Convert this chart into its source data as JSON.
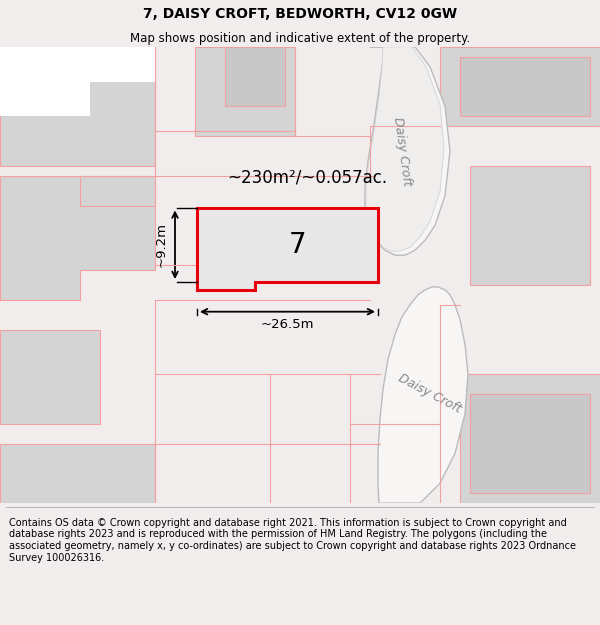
{
  "title": "7, DAISY CROFT, BEDWORTH, CV12 0GW",
  "subtitle": "Map shows position and indicative extent of the property.",
  "footer": "Contains OS data © Crown copyright and database right 2021. This information is subject to Crown copyright and database rights 2023 and is reproduced with the permission of HM Land Registry. The polygons (including the associated geometry, namely x, y co-ordinates) are subject to Crown copyright and database rights 2023 Ordnance Survey 100026316.",
  "area_text": "~230m²/~0.057ac.",
  "width_text": "~26.5m",
  "height_text": "~9.2m",
  "plot_number": "7",
  "street_name_1": "Daisy Croft",
  "street_name_2": "Daisy Croft",
  "bg_color": "#f2eded",
  "map_bg": "#ffffff",
  "plot_red": "#e8000a",
  "plot_fill": "#e0e0e0",
  "bld_fill": "#d4d4d4",
  "bld_fill2": "#c8c8c8",
  "pink": "#f5a0a0",
  "road_fill": "#f0eeee",
  "road_gray": "#c8c8c8",
  "title_fs": 10,
  "subtitle_fs": 8.5,
  "footer_fs": 7.0
}
